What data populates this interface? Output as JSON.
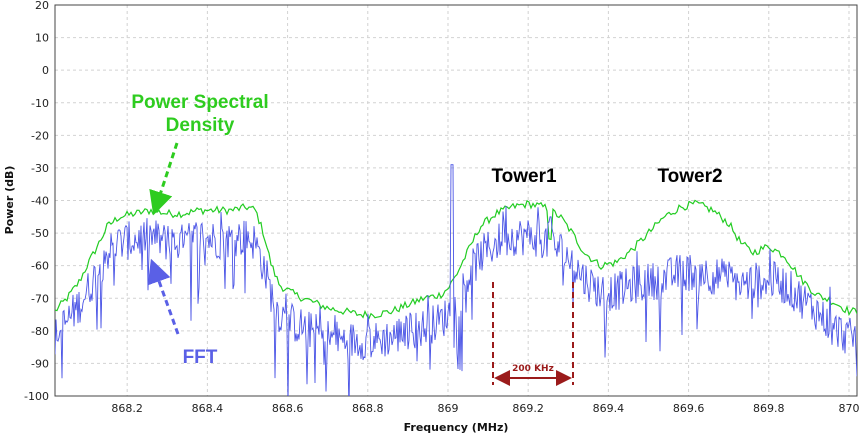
{
  "chart_data": {
    "type": "line",
    "xlabel": "Frequency (MHz)",
    "ylabel": "Power (dB)",
    "xlim": [
      868.02,
      870.02
    ],
    "ylim": [
      -100,
      20
    ],
    "x_ticks": [
      "868.2",
      "868.4",
      "868.6",
      "868.8",
      "869",
      "869.2",
      "869.4",
      "869.6",
      "869.8",
      "870"
    ],
    "y_ticks": [
      "20",
      "10",
      "0",
      "-10",
      "-20",
      "-30",
      "-40",
      "-50",
      "-60",
      "-70",
      "-80",
      "-90",
      "-100"
    ],
    "grid": true,
    "series": [
      {
        "name": "Power Spectral Density",
        "color": "#22cc22",
        "points": [
          [
            868.02,
            -74
          ],
          [
            868.05,
            -70
          ],
          [
            868.08,
            -65
          ],
          [
            868.1,
            -60
          ],
          [
            868.13,
            -53
          ],
          [
            868.15,
            -48
          ],
          [
            868.18,
            -45
          ],
          [
            868.22,
            -44
          ],
          [
            868.26,
            -43
          ],
          [
            868.3,
            -44
          ],
          [
            868.34,
            -44
          ],
          [
            868.38,
            -43
          ],
          [
            868.42,
            -43
          ],
          [
            868.46,
            -43
          ],
          [
            868.5,
            -42
          ],
          [
            868.52,
            -43
          ],
          [
            868.54,
            -50
          ],
          [
            868.56,
            -60
          ],
          [
            868.58,
            -66
          ],
          [
            868.62,
            -69
          ],
          [
            868.66,
            -71
          ],
          [
            868.7,
            -73
          ],
          [
            868.74,
            -74
          ],
          [
            868.78,
            -75
          ],
          [
            868.82,
            -75
          ],
          [
            868.86,
            -74
          ],
          [
            868.9,
            -72
          ],
          [
            868.94,
            -70
          ],
          [
            868.98,
            -69
          ],
          [
            869.0,
            -67
          ],
          [
            869.02,
            -63
          ],
          [
            869.04,
            -58
          ],
          [
            869.06,
            -53
          ],
          [
            869.08,
            -48
          ],
          [
            869.12,
            -44
          ],
          [
            869.16,
            -42
          ],
          [
            869.2,
            -41
          ],
          [
            869.24,
            -42
          ],
          [
            869.28,
            -45
          ],
          [
            869.31,
            -50
          ],
          [
            869.34,
            -56
          ],
          [
            869.38,
            -60
          ],
          [
            869.42,
            -59
          ],
          [
            869.46,
            -55
          ],
          [
            869.5,
            -50
          ],
          [
            869.54,
            -45
          ],
          [
            869.58,
            -42
          ],
          [
            869.62,
            -41
          ],
          [
            869.66,
            -43
          ],
          [
            869.7,
            -47
          ],
          [
            869.73,
            -53
          ],
          [
            869.76,
            -56
          ],
          [
            869.8,
            -54
          ],
          [
            869.84,
            -57
          ],
          [
            869.88,
            -64
          ],
          [
            869.92,
            -69
          ],
          [
            869.96,
            -71
          ],
          [
            870.0,
            -74
          ]
        ]
      },
      {
        "name": "FFT",
        "color": "#4b55e6",
        "points": [
          [
            868.02,
            -82
          ],
          [
            868.05,
            -77
          ],
          [
            868.08,
            -72
          ],
          [
            868.1,
            -68
          ],
          [
            868.13,
            -61
          ],
          [
            868.15,
            -56
          ],
          [
            868.18,
            -53
          ],
          [
            868.22,
            -52
          ],
          [
            868.26,
            -51
          ],
          [
            868.3,
            -53
          ],
          [
            868.34,
            -53
          ],
          [
            868.38,
            -51
          ],
          [
            868.42,
            -52
          ],
          [
            868.46,
            -52
          ],
          [
            868.5,
            -51
          ],
          [
            868.52,
            -53
          ],
          [
            868.54,
            -60
          ],
          [
            868.56,
            -69
          ],
          [
            868.58,
            -75
          ],
          [
            868.62,
            -78
          ],
          [
            868.66,
            -80
          ],
          [
            868.7,
            -82
          ],
          [
            868.74,
            -83
          ],
          [
            868.78,
            -83
          ],
          [
            868.82,
            -83
          ],
          [
            868.86,
            -82
          ],
          [
            868.9,
            -80
          ],
          [
            868.94,
            -79
          ],
          [
            868.98,
            -77
          ],
          [
            869.0,
            -75
          ],
          [
            869.02,
            -72
          ],
          [
            869.04,
            -66
          ],
          [
            869.06,
            -61
          ],
          [
            869.08,
            -57
          ],
          [
            869.12,
            -53
          ],
          [
            869.16,
            -51
          ],
          [
            869.2,
            -51
          ],
          [
            869.24,
            -52
          ],
          [
            869.28,
            -55
          ],
          [
            869.31,
            -59
          ],
          [
            869.34,
            -64
          ],
          [
            869.38,
            -68
          ],
          [
            869.42,
            -68
          ],
          [
            869.46,
            -66
          ],
          [
            869.5,
            -65
          ],
          [
            869.54,
            -64
          ],
          [
            869.58,
            -62
          ],
          [
            869.62,
            -62
          ],
          [
            869.66,
            -63
          ],
          [
            869.7,
            -64
          ],
          [
            869.73,
            -66
          ],
          [
            869.76,
            -65
          ],
          [
            869.8,
            -64
          ],
          [
            869.84,
            -66
          ],
          [
            869.88,
            -70
          ],
          [
            869.92,
            -74
          ],
          [
            869.96,
            -79
          ],
          [
            870.0,
            -82
          ]
        ]
      }
    ],
    "annotations": {
      "psd_label_line1": "Power Spectral",
      "psd_label_line2": "Density",
      "fft_label": "FFT",
      "tower1_label": "Tower1",
      "tower2_label": "Tower2",
      "bandwidth_label": "200 KHz"
    }
  }
}
